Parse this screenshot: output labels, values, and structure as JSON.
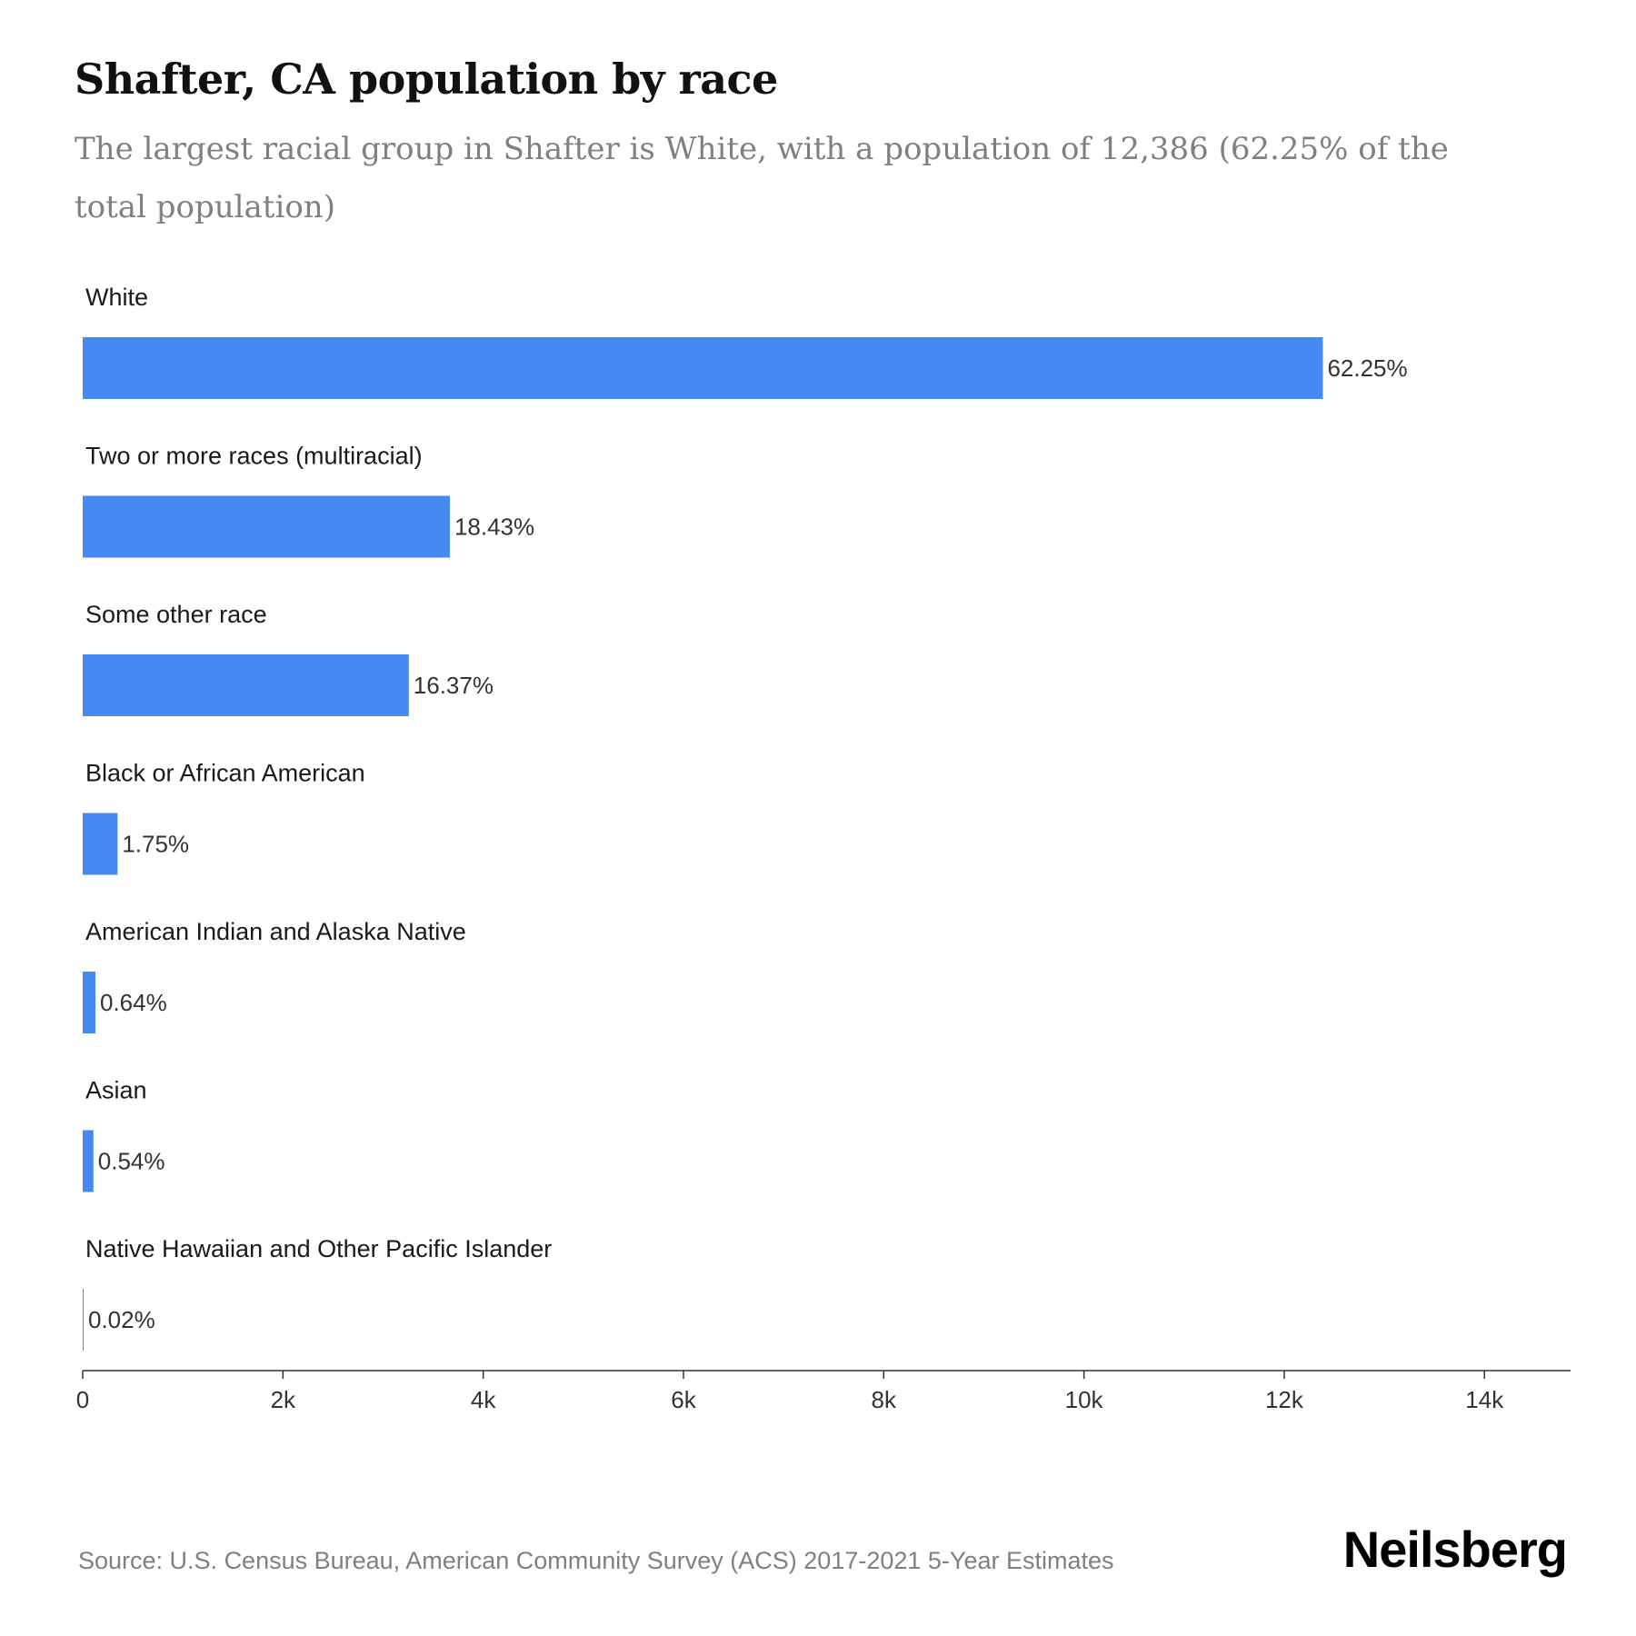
{
  "header": {
    "title": "Shafter, CA population by race",
    "subtitle": "The largest racial group in Shafter is White, with a population of 12,386 (62.25% of the total population)"
  },
  "chart_data": {
    "type": "bar",
    "orientation": "horizontal",
    "title": "Shafter, CA population by race",
    "xlabel": "",
    "ylabel": "",
    "xlim": [
      0,
      14860
    ],
    "ticks": [
      {
        "value": 0,
        "label": "0"
      },
      {
        "value": 2000,
        "label": "2k"
      },
      {
        "value": 4000,
        "label": "4k"
      },
      {
        "value": 6000,
        "label": "6k"
      },
      {
        "value": 8000,
        "label": "8k"
      },
      {
        "value": 10000,
        "label": "10k"
      },
      {
        "value": 12000,
        "label": "12k"
      },
      {
        "value": 14000,
        "label": "14k"
      }
    ],
    "bar_color": "#4589f2",
    "grid": false,
    "legend": "none",
    "bars": [
      {
        "category": "White",
        "value": 12386,
        "label": "62.25%"
      },
      {
        "category": "Two or more races (multiracial)",
        "value": 3667,
        "label": "18.43%"
      },
      {
        "category": "Some other race",
        "value": 3257,
        "label": "16.37%"
      },
      {
        "category": "Black or African American",
        "value": 348,
        "label": "1.75%"
      },
      {
        "category": "American Indian and Alaska Native",
        "value": 127,
        "label": "0.64%"
      },
      {
        "category": "Asian",
        "value": 107,
        "label": "0.54%"
      },
      {
        "category": "Native Hawaiian and Other Pacific Islander",
        "value": 4,
        "label": "0.02%"
      }
    ]
  },
  "footer": {
    "source": "Source: U.S. Census Bureau, American Community Survey (ACS) 2017-2021 5-Year Estimates",
    "brand": "Neilsberg"
  }
}
